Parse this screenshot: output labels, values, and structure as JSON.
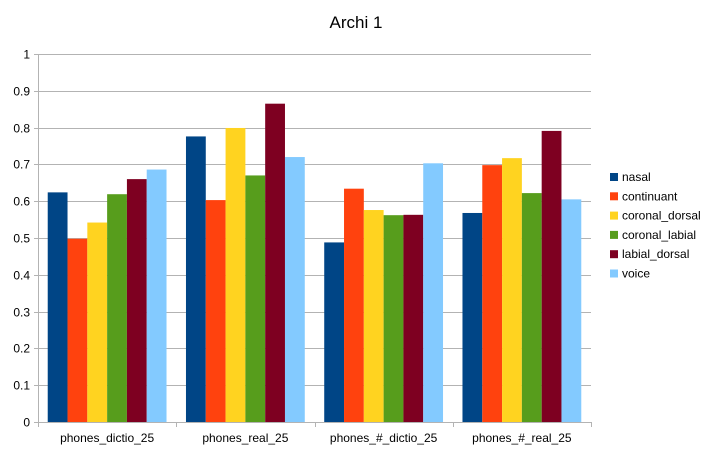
{
  "chart_data": {
    "type": "bar",
    "title": "Archi 1",
    "xlabel": "",
    "ylabel": "",
    "ylim": [
      0,
      1
    ],
    "yticks": [
      0,
      0.1,
      0.2,
      0.3,
      0.4,
      0.5,
      0.6,
      0.7,
      0.8,
      0.9,
      1
    ],
    "ytick_labels": [
      "0",
      "0.1",
      "0.2",
      "0.3",
      "0.4",
      "0.5",
      "0.6",
      "0.7",
      "0.8",
      "0.9",
      "1"
    ],
    "grid": true,
    "legend_position": "right",
    "categories": [
      "phones_dictio_25",
      "phones_real_25",
      "phones_#_dictio_25",
      "phones_#_real_25"
    ],
    "series": [
      {
        "name": "nasal",
        "color": "#004586",
        "values": [
          0.624,
          0.776,
          0.488,
          0.568
        ]
      },
      {
        "name": "continuant",
        "color": "#ff420e",
        "values": [
          0.498,
          0.603,
          0.634,
          0.698
        ]
      },
      {
        "name": "coronal_dorsal",
        "color": "#ffd320",
        "values": [
          0.542,
          0.799,
          0.576,
          0.717
        ]
      },
      {
        "name": "coronal_labial",
        "color": "#579d1c",
        "values": [
          0.619,
          0.67,
          0.562,
          0.622
        ]
      },
      {
        "name": "labial_dorsal",
        "color": "#7e0021",
        "values": [
          0.66,
          0.865,
          0.563,
          0.791
        ]
      },
      {
        "name": "voice",
        "color": "#83caff",
        "values": [
          0.686,
          0.72,
          0.703,
          0.605
        ]
      }
    ]
  }
}
